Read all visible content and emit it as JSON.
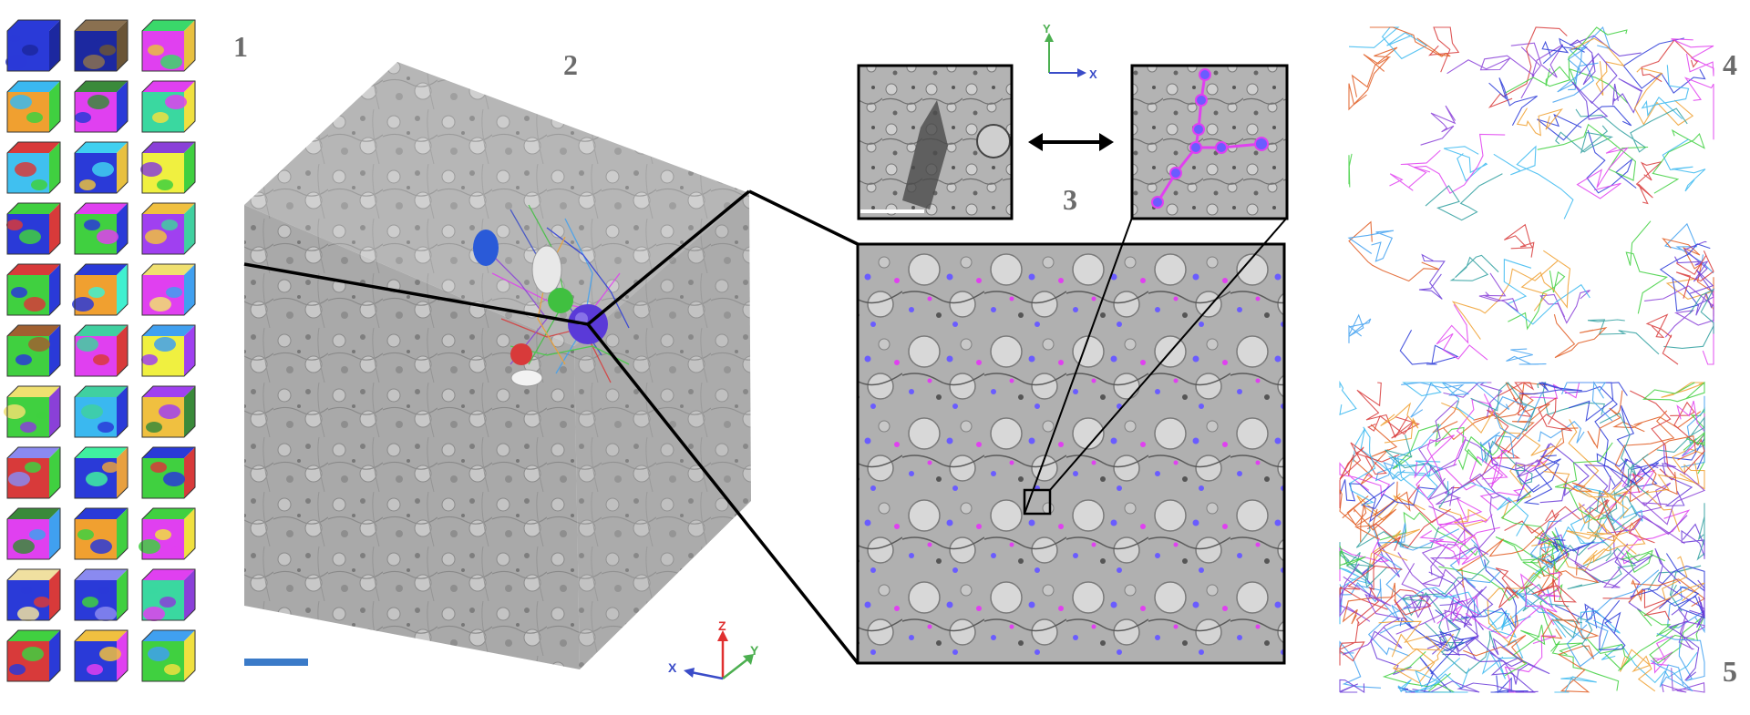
{
  "panel_labels": {
    "p1": "1",
    "p2": "2",
    "p3": "3",
    "p4": "4",
    "p5": "5"
  },
  "axes_main": {
    "z": "Z",
    "y": "Y",
    "x": "X"
  },
  "axes_inset": {
    "y": "Y",
    "x": "X"
  },
  "colors": {
    "label_gray": "#6b6b6b",
    "em_gray": "#a8a8a8",
    "segment_blue": "#6a5cff",
    "segment_magenta": "#e040f0",
    "scale_bar": "#3a7ac8",
    "axis_x": "#3a4cc8",
    "axis_y": "#4caf50",
    "axis_z": "#e03030"
  },
  "icons": [
    "double-headed-arrow-icon",
    "axis-triad-icon"
  ],
  "mini_cube_palettes": [
    [
      "#2a3ad8",
      "#2a3ad8",
      "#1c28a0"
    ],
    [
      "#8a7050",
      "#1c28a0",
      "#6a5436"
    ],
    [
      "#3ad86a",
      "#e040f0",
      "#e8c040"
    ],
    [
      "#3ab8f0",
      "#f0a030",
      "#40d040"
    ],
    [
      "#3a8a3a",
      "#e040f0",
      "#2a3ad8"
    ],
    [
      "#e040f0",
      "#3ad8a0",
      "#f0e040"
    ],
    [
      "#d83a3a",
      "#40c0f0",
      "#40d040"
    ],
    [
      "#40d0f0",
      "#2a3ad8",
      "#e8c040"
    ],
    [
      "#8a40d8",
      "#f0f040",
      "#40d040"
    ],
    [
      "#40d040",
      "#2a3ad8",
      "#d83a3a"
    ],
    [
      "#e040f0",
      "#40d040",
      "#2a3ad8"
    ],
    [
      "#f0c040",
      "#a040f0",
      "#40d0a0"
    ],
    [
      "#d83a3a",
      "#40d040",
      "#2a3ad8"
    ],
    [
      "#2a3ad8",
      "#f0a030",
      "#40f0d0"
    ],
    [
      "#f0e070",
      "#e040f0",
      "#40a0f0"
    ],
    [
      "#a06030",
      "#40d040",
      "#2a3ad8"
    ],
    [
      "#40d0a0",
      "#e040f0",
      "#d83a3a"
    ],
    [
      "#40a0f0",
      "#f0f040",
      "#a040f0"
    ],
    [
      "#f0e070",
      "#40d040",
      "#8a40d8"
    ],
    [
      "#40d0a0",
      "#3ab8f0",
      "#2a3ad8"
    ],
    [
      "#a040f0",
      "#f0c040",
      "#3a8a3a"
    ],
    [
      "#8a8af0",
      "#d83a3a",
      "#40d040"
    ],
    [
      "#40f0a0",
      "#2a3ad8",
      "#e8a040"
    ],
    [
      "#2a3ad8",
      "#40d040",
      "#d83a3a"
    ],
    [
      "#3a8a3a",
      "#e040f0",
      "#40a0f0"
    ],
    [
      "#2a3ad8",
      "#f0a030",
      "#40d040"
    ],
    [
      "#40d040",
      "#e040f0",
      "#f0e040"
    ],
    [
      "#f0e0a0",
      "#2a3ad8",
      "#d83a3a"
    ],
    [
      "#8a8af0",
      "#2a3ad8",
      "#40d040"
    ],
    [
      "#e040f0",
      "#3ad8a0",
      "#8a40d8"
    ],
    [
      "#40d040",
      "#d83a3a",
      "#2a3ad8"
    ],
    [
      "#f0c040",
      "#2a3ad8",
      "#e040f0"
    ],
    [
      "#40a0f0",
      "#40d040",
      "#f0e040"
    ]
  ]
}
